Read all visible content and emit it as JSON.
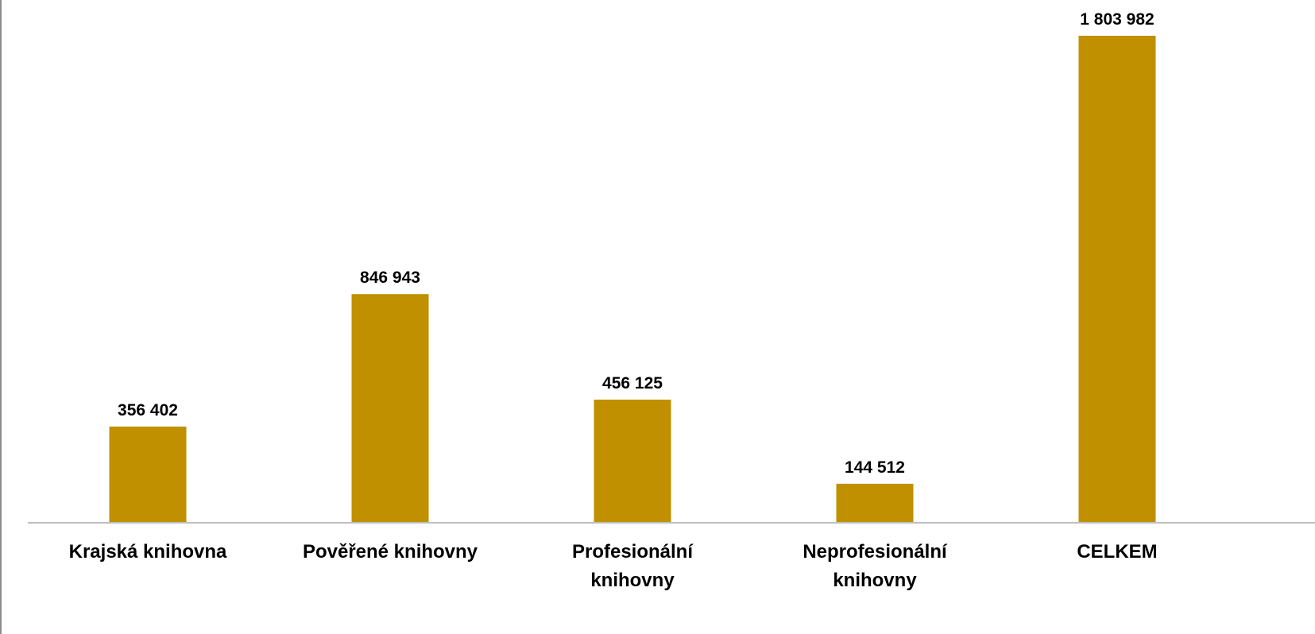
{
  "chart_data": {
    "type": "bar",
    "categories": [
      [
        "Krajská knihovna"
      ],
      [
        "Pověřené knihovny"
      ],
      [
        "Profesionální",
        "knihovny"
      ],
      [
        "Neprofesionální",
        "knihovny"
      ],
      [
        "CELKEM"
      ]
    ],
    "values": [
      356402,
      846943,
      456125,
      144512,
      1803982
    ],
    "data_labels": [
      "356 402",
      "846 943",
      "456 125",
      "144 512",
      "1 803 982"
    ],
    "title": "",
    "xlabel": "",
    "ylabel": "",
    "ylim": [
      0,
      1803982
    ],
    "grid": false,
    "legend": "none",
    "colors": {
      "bar": "#C09000",
      "axis": "#bfbfbf",
      "frame": "#8c8c8c"
    }
  }
}
